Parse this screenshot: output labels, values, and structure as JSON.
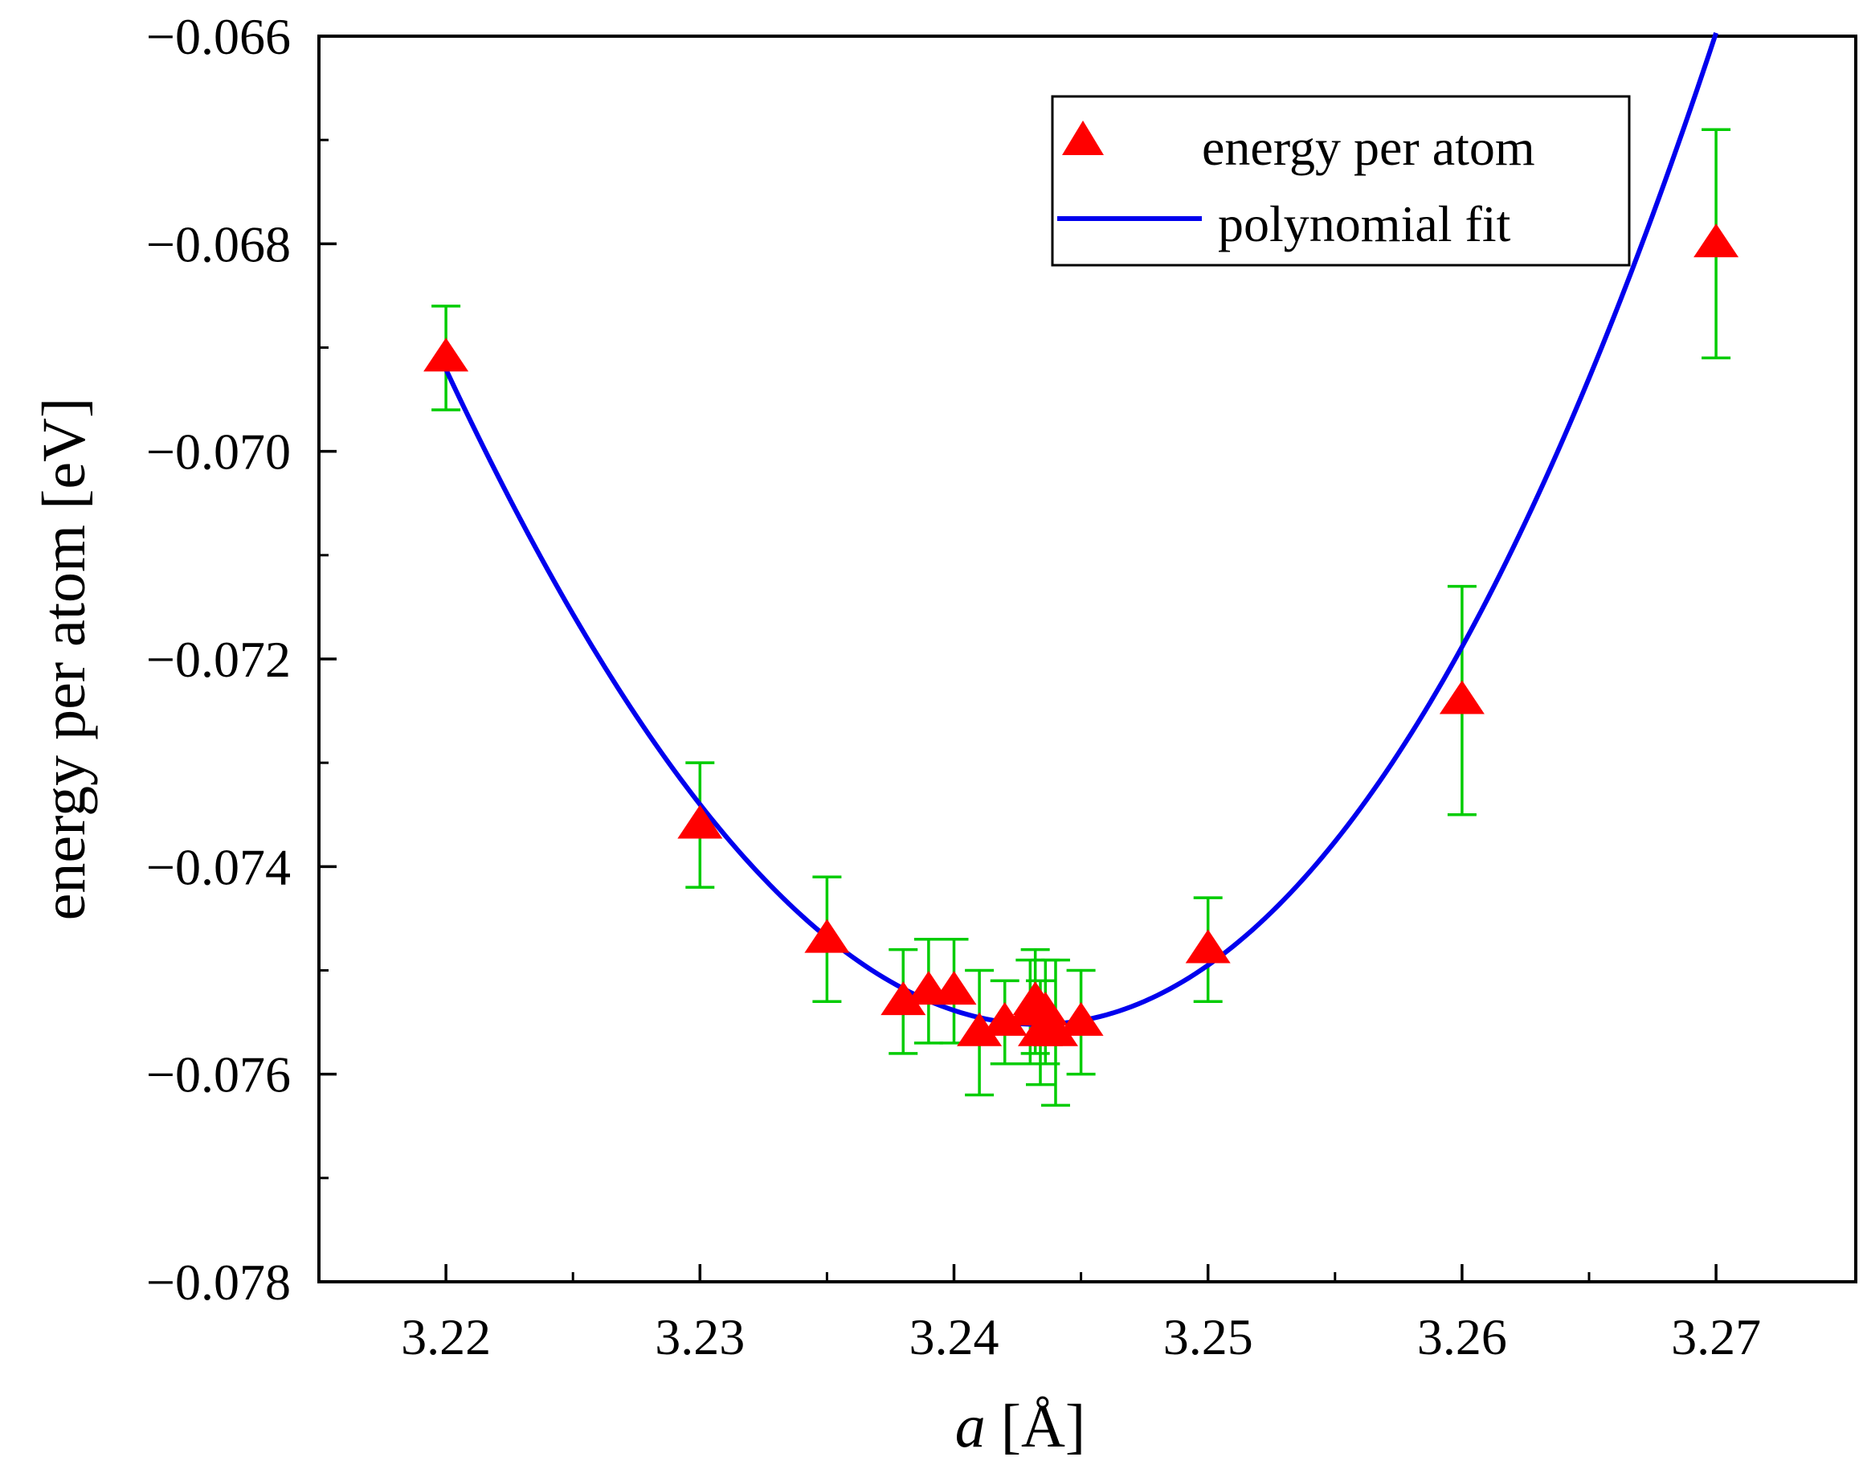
{
  "chart_data": {
    "type": "scatter",
    "title": "",
    "xlabel_italic": "a",
    "xlabel_rest": " [Å]",
    "ylabel": "energy per atom [eV]",
    "xlim": [
      3.215,
      3.2755
    ],
    "ylim": [
      -0.078,
      -0.066
    ],
    "x_ticks": [
      3.22,
      3.23,
      3.24,
      3.25,
      3.26,
      3.27
    ],
    "x_tick_labels": [
      "3.22",
      "3.23",
      "3.24",
      "3.25",
      "3.26",
      "3.27"
    ],
    "x_minor_ticks": [
      3.225,
      3.235,
      3.245,
      3.255,
      3.265
    ],
    "y_ticks": [
      -0.078,
      -0.076,
      -0.074,
      -0.072,
      -0.07,
      -0.068,
      -0.066
    ],
    "y_tick_labels": [
      "−0.078",
      "−0.076",
      "−0.074",
      "−0.072",
      "−0.070",
      "−0.068",
      "−0.066"
    ],
    "y_minor_ticks": [
      -0.077,
      -0.075,
      -0.073,
      -0.071,
      -0.069,
      -0.067
    ],
    "grid": false,
    "legend_position": "top-right",
    "series": [
      {
        "name": "energy per atom",
        "kind": "points-with-error-bars",
        "color": "#ff0000",
        "error_color": "#00cc00",
        "x": [
          3.22,
          3.23,
          3.235,
          3.238,
          3.239,
          3.24,
          3.241,
          3.242,
          3.243,
          3.2432,
          3.2434,
          3.2436,
          3.244,
          3.245,
          3.25,
          3.26,
          3.27
        ],
        "y": [
          -0.0691,
          -0.0736,
          -0.0747,
          -0.0753,
          -0.0752,
          -0.0752,
          -0.0756,
          -0.0755,
          -0.0754,
          -0.0753,
          -0.0756,
          -0.0754,
          -0.0756,
          -0.0755,
          -0.0748,
          -0.0724,
          -0.068
        ],
        "err": [
          0.0005,
          0.0006,
          0.0006,
          0.0005,
          0.0005,
          0.0005,
          0.0006,
          0.0004,
          0.0005,
          0.0005,
          0.0005,
          0.0005,
          0.0007,
          0.0005,
          0.0005,
          0.0011,
          0.0011
        ]
      },
      {
        "name": "polynomial fit",
        "kind": "curve",
        "color": "#0000ee",
        "x_range": [
          3.22,
          3.27
        ],
        "coefficients": {
          "vertex_x": 3.2433,
          "vertex_y": -0.07552,
          "a": 12.45,
          "b": 35.5
        }
      }
    ]
  }
}
